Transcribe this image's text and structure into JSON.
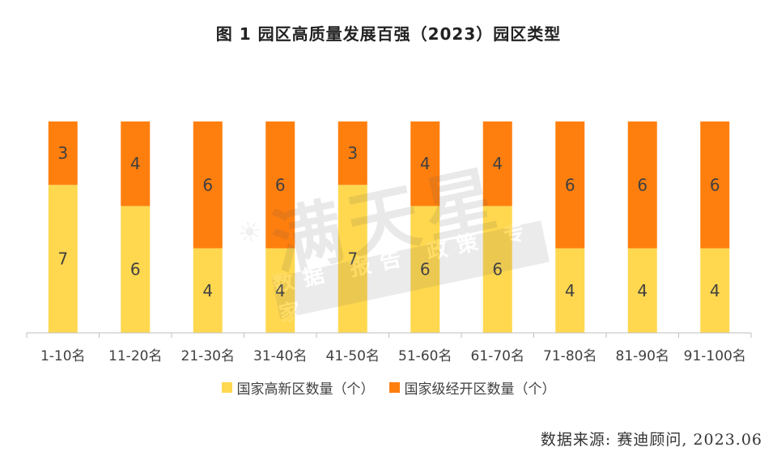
{
  "chart_data": {
    "type": "bar",
    "stacked": true,
    "title": "图 1 园区高质量发展百强（2023）园区类型",
    "categories": [
      "1-10名",
      "11-20名",
      "21-30名",
      "31-40名",
      "41-50名",
      "51-60名",
      "61-70名",
      "71-80名",
      "81-90名",
      "91-100名"
    ],
    "series": [
      {
        "name": "国家高新区数量（个）",
        "color": "#FFD84F",
        "values": [
          7,
          6,
          4,
          4,
          7,
          6,
          6,
          4,
          4,
          4
        ]
      },
      {
        "name": "国家级经开区数量（个）",
        "color": "#FF7F0E",
        "values": [
          3,
          4,
          6,
          6,
          3,
          4,
          4,
          6,
          6,
          6
        ]
      }
    ],
    "ylim": [
      0,
      10
    ],
    "grid": false,
    "legend_position": "bottom"
  },
  "source": "数据来源: 赛迪顾问, 2023.06",
  "watermark": {
    "logo_text": "满天星",
    "tagline": "数据 报告 政策 专家"
  }
}
